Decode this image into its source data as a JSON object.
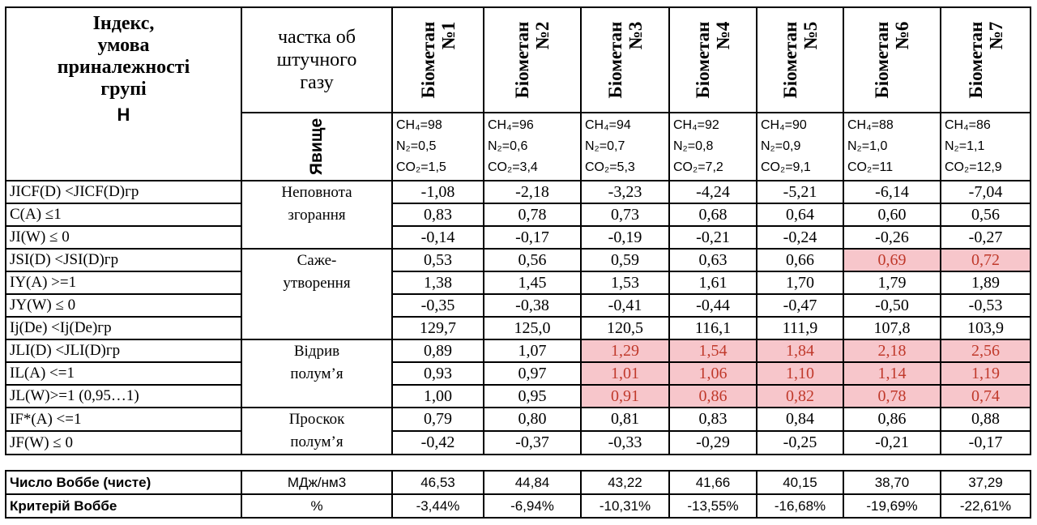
{
  "header": {
    "index_title": [
      "Індекс,",
      "умова",
      "приналежності",
      "групі"
    ],
    "index_letter": "H",
    "share_title": [
      "частка об",
      "штучного",
      "газу"
    ],
    "phenomenon": "Явище"
  },
  "biomethanes": [
    {
      "name": "Біометан",
      "num": "№1",
      "ch4": "CH₄=98",
      "n2": "N₂=0,5",
      "co2": "CO₂=1,5"
    },
    {
      "name": "Біометан",
      "num": "№2",
      "ch4": "CH₄=96",
      "n2": "N₂=0,6",
      "co2": "CO₂=3,4"
    },
    {
      "name": "Біометан",
      "num": "№3",
      "ch4": "CH₄=94",
      "n2": "N₂=0,7",
      "co2": "CO₂=5,3"
    },
    {
      "name": "Біометан",
      "num": "№4",
      "ch4": "CH₄=92",
      "n2": "N₂=0,8",
      "co2": "CO₂=7,2"
    },
    {
      "name": "Біометан",
      "num": "№5",
      "ch4": "CH₄=90",
      "n2": "N₂=0,9",
      "co2": "CO₂=9,1"
    },
    {
      "name": "Біометан",
      "num": "№6",
      "ch4": "CH₄=88",
      "n2": "N₂=1,0",
      "co2": "CO₂=11"
    },
    {
      "name": "Біометан",
      "num": "№7",
      "ch4": "CH₄=86",
      "n2": "N₂=1,1",
      "co2": "CO₂=12,9"
    }
  ],
  "groups": [
    {
      "label": [
        "Неповнота",
        "згорання"
      ],
      "rows": [
        {
          "index": "JICF(D) <JICF(D)гр",
          "values": [
            "-1,08",
            "-2,18",
            "-3,23",
            "-4,24",
            "-5,21",
            "-6,14",
            "-7,04"
          ],
          "highlight": [
            false,
            false,
            false,
            false,
            false,
            false,
            false
          ]
        },
        {
          "index": "C(A) ≤1",
          "values": [
            "0,83",
            "0,78",
            "0,73",
            "0,68",
            "0,64",
            "0,60",
            "0,56"
          ],
          "highlight": [
            false,
            false,
            false,
            false,
            false,
            false,
            false
          ]
        },
        {
          "index": "JI(W) ≤ 0",
          "values": [
            "-0,14",
            "-0,17",
            "-0,19",
            "-0,21",
            "-0,24",
            "-0,26",
            "-0,27"
          ],
          "highlight": [
            false,
            false,
            false,
            false,
            false,
            false,
            false
          ]
        }
      ]
    },
    {
      "label": [
        "Саже-",
        "утворення"
      ],
      "rows": [
        {
          "index": "JSI(D) <JSI(D)гр",
          "values": [
            "0,53",
            "0,56",
            "0,59",
            "0,63",
            "0,66",
            "0,69",
            "0,72"
          ],
          "highlight": [
            false,
            false,
            false,
            false,
            false,
            true,
            true
          ]
        },
        {
          "index": "IY(A)  >=1",
          "values": [
            "1,38",
            "1,45",
            "1,53",
            "1,61",
            "1,70",
            "1,79",
            "1,89"
          ],
          "highlight": [
            false,
            false,
            false,
            false,
            false,
            false,
            false
          ]
        },
        {
          "index": "JY(W) ≤ 0",
          "values": [
            "-0,35",
            "-0,38",
            "-0,41",
            "-0,44",
            "-0,47",
            "-0,50",
            "-0,53"
          ],
          "highlight": [
            false,
            false,
            false,
            false,
            false,
            false,
            false
          ]
        },
        {
          "index": "Ij(De) <Ij(De)гр",
          "values": [
            "129,7",
            "125,0",
            "120,5",
            "116,1",
            "111,9",
            "107,8",
            "103,9"
          ],
          "highlight": [
            false,
            false,
            false,
            false,
            false,
            false,
            false
          ]
        }
      ]
    },
    {
      "label": [
        "Відрив",
        "полум’я"
      ],
      "rows": [
        {
          "index": "JLI(D) <JLI(D)гр",
          "values": [
            "0,89",
            "1,07",
            "1,29",
            "1,54",
            "1,84",
            "2,18",
            "2,56"
          ],
          "highlight": [
            false,
            false,
            true,
            true,
            true,
            true,
            true
          ]
        },
        {
          "index": "IL(A)  <=1",
          "values": [
            "0,93",
            "0,97",
            "1,01",
            "1,06",
            "1,10",
            "1,14",
            "1,19"
          ],
          "highlight": [
            false,
            false,
            true,
            true,
            true,
            true,
            true
          ]
        },
        {
          "index": "JL(W)>=1 (0,95…1)",
          "values": [
            "1,00",
            "0,95",
            "0,91",
            "0,86",
            "0,82",
            "0,78",
            "0,74"
          ],
          "highlight": [
            false,
            false,
            true,
            true,
            true,
            true,
            true
          ]
        }
      ]
    },
    {
      "label": [
        "Проскок",
        "полум’я"
      ],
      "rows": [
        {
          "index": "IF*(A) <=1",
          "values": [
            "0,79",
            "0,80",
            "0,81",
            "0,83",
            "0,84",
            "0,86",
            "0,88"
          ],
          "highlight": [
            false,
            false,
            false,
            false,
            false,
            false,
            false
          ]
        },
        {
          "index": "JF(W) ≤ 0",
          "values": [
            "-0,42",
            "-0,37",
            "-0,33",
            "-0,29",
            "-0,25",
            "-0,21",
            "-0,17"
          ],
          "highlight": [
            false,
            false,
            false,
            false,
            false,
            false,
            false
          ]
        }
      ]
    }
  ],
  "summary": [
    {
      "index": "Число Воббе (чисте)",
      "unit": "МДж/нм3",
      "values": [
        "46,53",
        "44,84",
        "43,22",
        "41,66",
        "40,15",
        "38,70",
        "37,29"
      ]
    },
    {
      "index": "Критерій Воббе",
      "unit": "%",
      "values": [
        "-3,44%",
        "-6,94%",
        "-10,31%",
        "-13,55%",
        "-16,68%",
        "-19,69%",
        "-22,61%"
      ]
    }
  ],
  "colors": {
    "highlight_bg": "#f7c6cb",
    "highlight_text": "#c0392b"
  }
}
